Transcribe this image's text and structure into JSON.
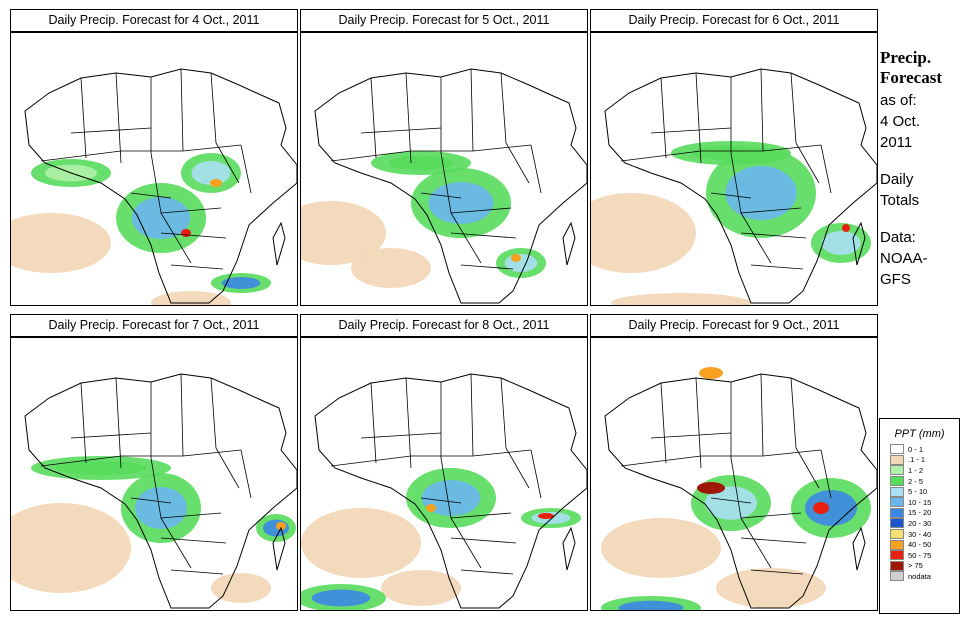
{
  "panels": [
    {
      "title": "Daily Precip. Forecast for  4 Oct., 2011"
    },
    {
      "title": "Daily Precip. Forecast for  5 Oct., 2011"
    },
    {
      "title": "Daily Precip. Forecast for  6 Oct., 2011"
    },
    {
      "title": "Daily Precip. Forecast for  7 Oct., 2011"
    },
    {
      "title": "Daily Precip. Forecast for  8 Oct., 2011"
    },
    {
      "title": "Daily Precip. Forecast for  9 Oct., 2011"
    }
  ],
  "sidebar": {
    "heading1": "Precip.",
    "heading2": "Forecast",
    "asof": "as of:",
    "date1": "4 Oct.",
    "date2": "2011",
    "totals1": "Daily",
    "totals2": "Totals",
    "data_label": "Data:",
    "source1": "NOAA-",
    "source2": "GFS"
  },
  "legend": {
    "title": "PPT (mm)",
    "bins": [
      {
        "label": "0 - 1",
        "color": "#ffffff"
      },
      {
        "label": ".1 - 1",
        "color": "#f2d8b8"
      },
      {
        "label": "1 - 2",
        "color": "#b0f0a8"
      },
      {
        "label": "2 - 5",
        "color": "#58dc5c"
      },
      {
        "label": "5 - 10",
        "color": "#a8e0f4"
      },
      {
        "label": "10 - 15",
        "color": "#6ab6ee"
      },
      {
        "label": "15 - 20",
        "color": "#3c88e4"
      },
      {
        "label": "20 - 30",
        "color": "#1c58cc"
      },
      {
        "label": "30 - 40",
        "color": "#f4e070"
      },
      {
        "label": "40 - 50",
        "color": "#f8a020"
      },
      {
        "label": "50 - 75",
        "color": "#e82010"
      },
      {
        "label": "> 75",
        "color": "#a01808"
      },
      {
        "label": "nodata",
        "color": "#d0d0d0"
      }
    ]
  }
}
